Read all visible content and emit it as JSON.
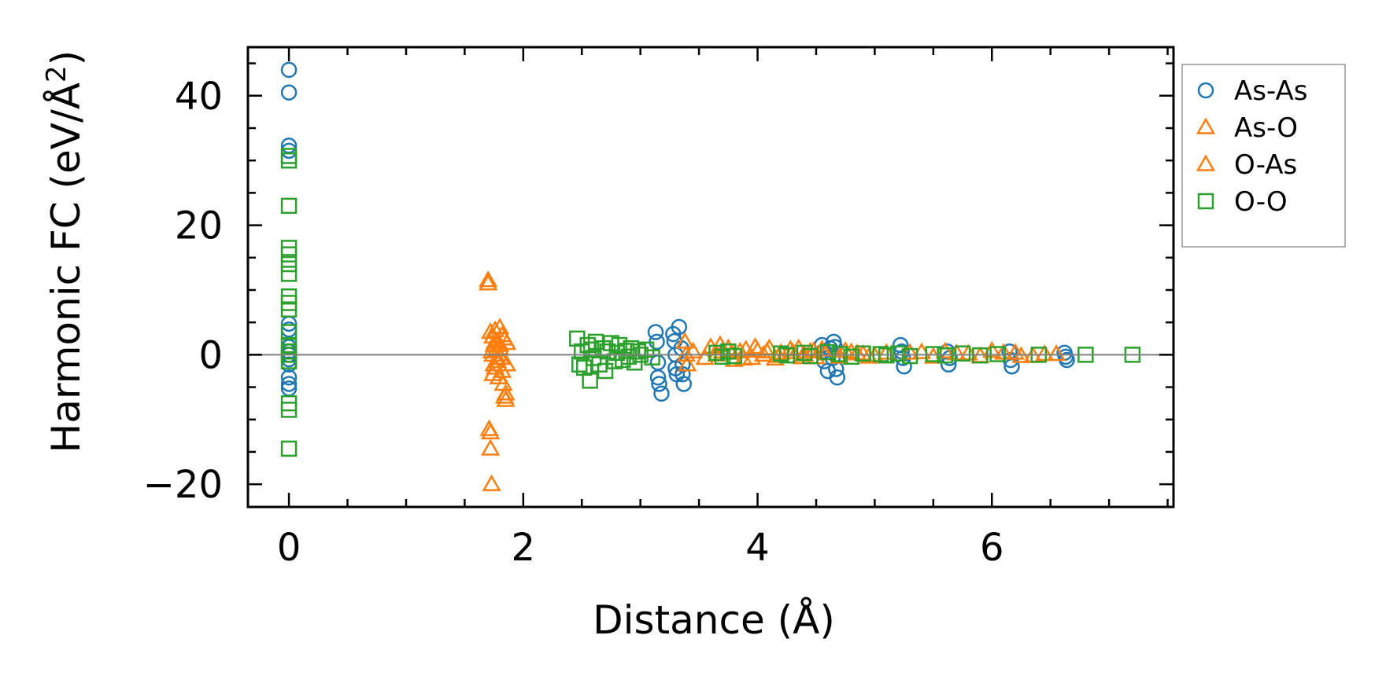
{
  "chart_data": {
    "type": "scatter",
    "title": "",
    "xlabel": "Distance (Å)",
    "ylabel_main": "Harmonic FC (eV/Å",
    "ylabel_sup": "2",
    "ylabel_close": ")",
    "xlim": [
      -0.35,
      7.55
    ],
    "ylim": [
      -23.5,
      47.5
    ],
    "xticks": [
      0,
      2,
      4,
      6
    ],
    "xtick_labels": [
      "0",
      "2",
      "4",
      "6"
    ],
    "yticks": [
      -20,
      0,
      20,
      40
    ],
    "ytick_labels": [
      "−20",
      "0",
      "20",
      "40"
    ],
    "grid": false,
    "zero_line": true,
    "legend_position": "outside-right",
    "colors": {
      "As-As": "#1f77b4",
      "As-O": "#ff7f0e",
      "O-As": "#ff7f0e",
      "O-O": "#2ca02c",
      "zero_line": "#808080"
    },
    "series": [
      {
        "name": "As-As",
        "marker": "circle",
        "color": "#1f77b4",
        "x": [
          0,
          0,
          0,
          0,
          0,
          0,
          0,
          0,
          0,
          0,
          0,
          0,
          0,
          0,
          3.13,
          3.14,
          3.15,
          3.15,
          3.16,
          3.18,
          3.28,
          3.29,
          3.3,
          3.3,
          3.31,
          3.33,
          3.35,
          3.36,
          3.36,
          3.37,
          4.55,
          4.56,
          4.57,
          4.6,
          4.62,
          4.64,
          4.65,
          4.66,
          4.67,
          4.68,
          5.22,
          5.23,
          5.24,
          5.25,
          5.62,
          5.63,
          5.64,
          6.15,
          6.16,
          6.17,
          6.62,
          6.63,
          6.64
        ],
        "y": [
          44.0,
          40.5,
          32.3,
          31.5,
          4.8,
          3.9,
          1.2,
          0.5,
          0,
          -0.7,
          -1.5,
          -3.5,
          -4.5,
          -5.2,
          3.5,
          2.0,
          -1.2,
          -3.5,
          -4.5,
          -6.0,
          3.2,
          2.1,
          0,
          -2.1,
          -3.0,
          4.3,
          1.0,
          -1.5,
          -3.0,
          -4.5,
          1.5,
          0.5,
          -1.0,
          -2.5,
          1.0,
          -0.5,
          2.0,
          1.2,
          -2.2,
          -3.5,
          1.5,
          0.5,
          -0.5,
          -1.8,
          0.5,
          -1.5,
          -0.5,
          0.5,
          -0.8,
          -1.8,
          0.3,
          -0.3,
          -0.8
        ]
      },
      {
        "name": "As-O",
        "marker": "triangle",
        "color": "#ff7f0e",
        "x": [
          1.7,
          1.71,
          1.72,
          1.72,
          1.73,
          1.73,
          1.74,
          1.74,
          1.75,
          1.75,
          1.76,
          1.76,
          1.77,
          1.78,
          1.78,
          1.79,
          1.8,
          1.8,
          1.81,
          1.82,
          1.83,
          1.84,
          1.84,
          1.85,
          1.86,
          1.86,
          3.38,
          3.39,
          3.4,
          3.6,
          3.65,
          3.7,
          3.75,
          3.8,
          3.85,
          3.9,
          3.95,
          4.0,
          4.05,
          4.1,
          4.15,
          4.2,
          4.3,
          4.35,
          4.4,
          4.45,
          4.5,
          4.55,
          4.75,
          4.85,
          4.95,
          5.3,
          5.5,
          5.7,
          5.9,
          6.1,
          6.25,
          6.45
        ],
        "y": [
          11.5,
          -11.5,
          -14.5,
          3.5,
          -20.0,
          0.5,
          -3.0,
          2.8,
          1.5,
          -1.5,
          3.8,
          -2.0,
          0.8,
          -0.5,
          2.2,
          -3.5,
          4.2,
          1.0,
          -0.5,
          3.0,
          -4.5,
          -6.5,
          2.5,
          -7.0,
          -1.5,
          1.8,
          2.0,
          0,
          -1.5,
          1.2,
          0,
          0.5,
          1.0,
          -0.8,
          0.5,
          0.8,
          -0.5,
          0.6,
          0,
          1.0,
          -0.6,
          0.3,
          0.4,
          1.0,
          0,
          0.5,
          -0.4,
          0.8,
          0.6,
          0.2,
          -0.3,
          0.3,
          -0.3,
          0.2,
          -0.2,
          0.3,
          -0.2,
          0.1
        ]
      },
      {
        "name": "O-As",
        "marker": "triangle",
        "color": "#ff7f0e",
        "x": [
          1.7,
          1.72,
          1.74,
          1.76,
          1.78,
          1.8,
          1.82,
          1.85,
          3.45,
          3.55,
          3.68,
          3.78,
          3.88,
          3.98,
          4.08,
          4.18,
          4.28,
          4.38,
          4.48,
          4.58,
          4.7,
          4.8,
          4.9,
          5.0,
          5.1,
          5.4,
          5.6,
          5.8,
          6.0,
          6.2,
          6.35,
          6.55
        ],
        "y": [
          11.0,
          -12.0,
          0,
          2.0,
          -1.0,
          1.5,
          -2.5,
          -6.0,
          0.5,
          -0.5,
          1.5,
          0.3,
          -0.6,
          1.2,
          0.5,
          -0.2,
          0.8,
          -0.4,
          0.6,
          0.2,
          -0.3,
          0.4,
          0.1,
          -0.2,
          0.3,
          0.4,
          0.5,
          0.2,
          0.6,
          0.3,
          -0.2,
          0.1
        ]
      },
      {
        "name": "O-O",
        "marker": "square",
        "color": "#2ca02c",
        "x": [
          0,
          0,
          0,
          0,
          0,
          0,
          0,
          0,
          0,
          0,
          0,
          0,
          0,
          0,
          0,
          0,
          0,
          0,
          2.46,
          2.48,
          2.5,
          2.52,
          2.55,
          2.57,
          2.58,
          2.6,
          2.62,
          2.65,
          2.68,
          2.7,
          2.72,
          2.75,
          2.78,
          2.8,
          2.82,
          2.85,
          2.88,
          2.9,
          2.92,
          2.95,
          2.98,
          3.0,
          3.05,
          3.1,
          3.65,
          3.7,
          3.75,
          3.8,
          4.2,
          4.25,
          4.4,
          4.45,
          4.6,
          4.7,
          4.8,
          4.9,
          5.05,
          5.1,
          5.2,
          5.3,
          5.5,
          5.6,
          5.75,
          5.9,
          6.05,
          6.4,
          6.8,
          7.2
        ],
        "y": [
          30.7,
          30.0,
          23.0,
          16.5,
          15.5,
          14.0,
          12.5,
          9.0,
          8.0,
          7.0,
          3.5,
          1.5,
          0.5,
          0,
          -1.0,
          -7.5,
          -8.5,
          -14.5,
          2.5,
          -1.5,
          0.5,
          -2.0,
          1.5,
          -4.0,
          0.8,
          -0.5,
          2.0,
          -1.5,
          1.0,
          -2.5,
          0.5,
          1.8,
          -1.0,
          0.3,
          1.5,
          -0.8,
          0.6,
          -0.3,
          1.0,
          -1.2,
          0.5,
          0,
          0.8,
          -0.4,
          0.3,
          -0.3,
          0.5,
          -0.2,
          0.2,
          -0.1,
          0.3,
          -0.2,
          0.4,
          0.1,
          -0.3,
          0.2,
          0.1,
          -0.1,
          0.2,
          -0.2,
          0.1,
          -0.1,
          0.2,
          -0.1,
          0.1,
          0,
          0,
          0
        ]
      }
    ]
  }
}
